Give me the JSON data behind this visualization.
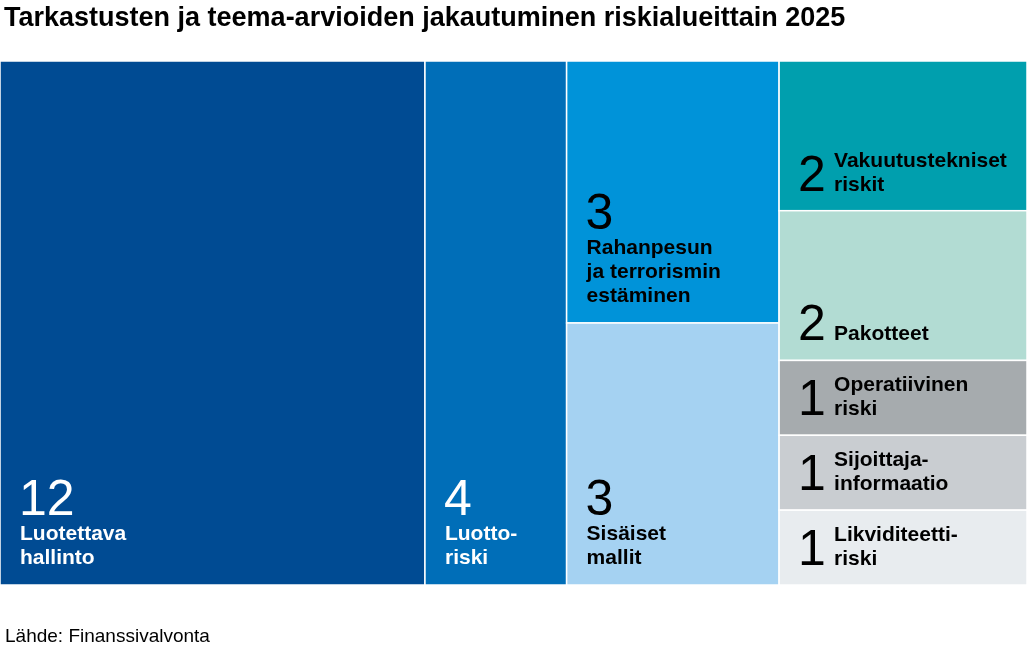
{
  "chart_data": {
    "type": "other",
    "title": "Tarkastusten ja teema-arvioiden jakautuminen riskialueittain 2025",
    "categories": [
      "Luotettava\nhallinto",
      "Luotto-\nriski",
      "Rahanpesun\nja terrorismin\nestäminen",
      "Sisäiset\nmallit",
      "Vakuutustekniset\nriskit",
      "Pakotteet",
      "Operatiivinen\nriski",
      "Sijoittaja-\ninformaatio",
      "Likviditeetti-\nriski"
    ],
    "values": [
      12,
      4,
      3,
      3,
      2,
      2,
      1,
      1,
      1
    ],
    "colors": [
      "#004b93",
      "#006eb8",
      "#0093d9",
      "#a5d2f2",
      "#009fae",
      "#b2dcd3",
      "#a6abae",
      "#c9cdd1",
      "#e8ecef"
    ],
    "data_labels": true,
    "annotations": [
      "Lähde: Finanssivalvonta"
    ]
  }
}
